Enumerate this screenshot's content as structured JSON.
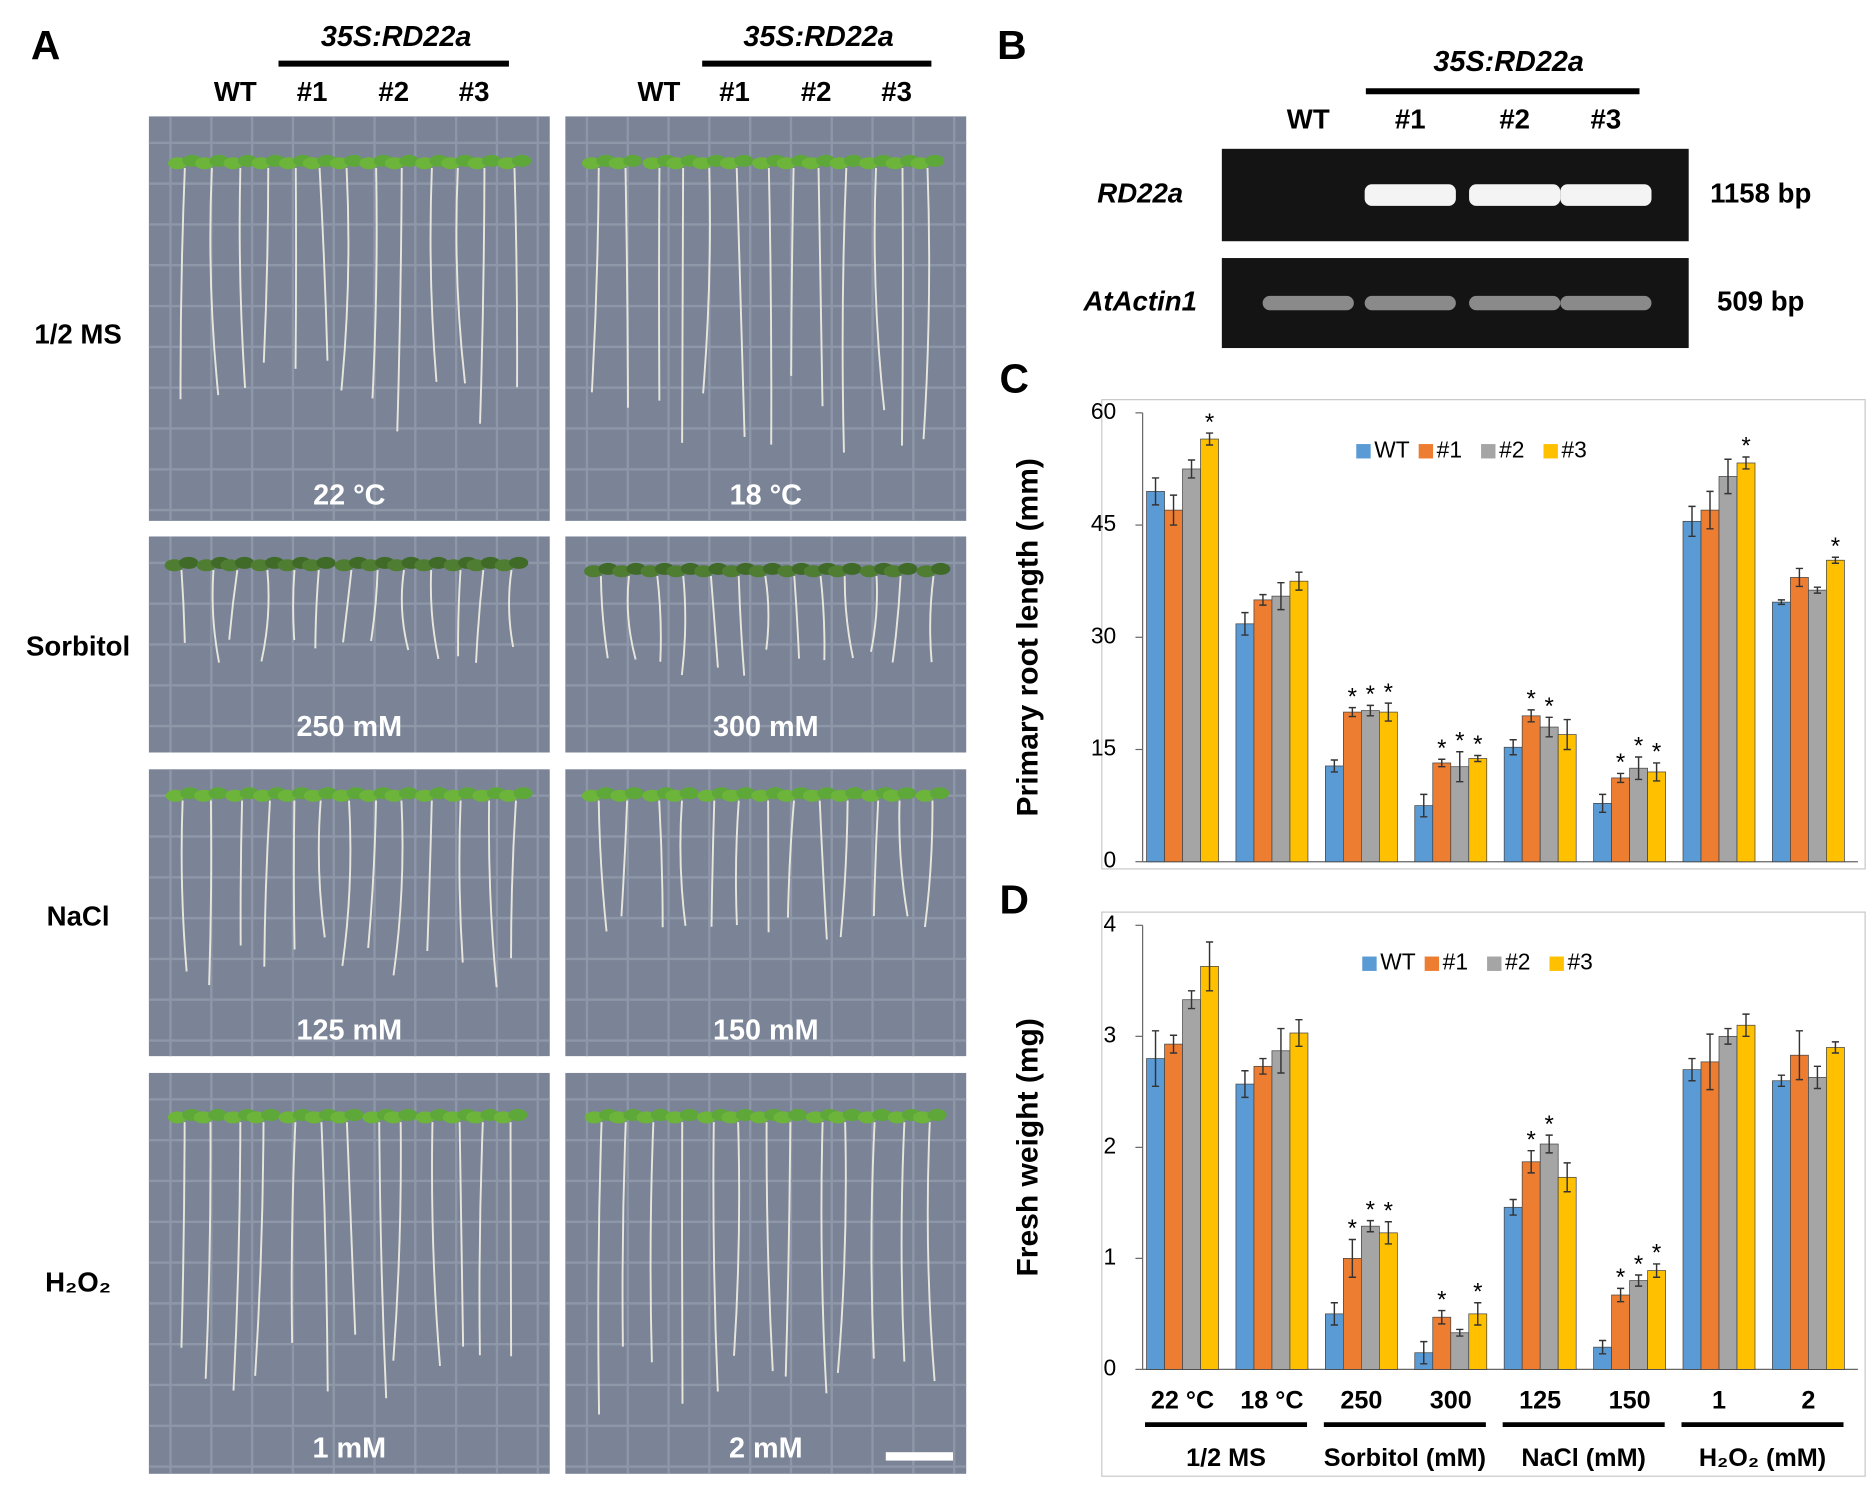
{
  "panel_a": {
    "label": "A",
    "construct": [
      "35S:RD22a",
      "35S:RD22a"
    ],
    "lines": [
      [
        "WT",
        "#1",
        "#2",
        "#3"
      ],
      [
        "WT",
        "#1",
        "#2",
        "#3"
      ]
    ],
    "rows": [
      {
        "label": "1/2 MS",
        "conditions": [
          "22 °C",
          "18 °C"
        ]
      },
      {
        "label": "Sorbitol",
        "conditions": [
          "250 mM",
          "300 mM"
        ]
      },
      {
        "label": "NaCl",
        "conditions": [
          "125 mM",
          "150 mM"
        ]
      },
      {
        "label": "H₂O₂",
        "conditions": [
          "1 mM",
          "2 mM"
        ]
      }
    ]
  },
  "panel_b": {
    "label": "B",
    "construct": "35S:RD22a",
    "lines": [
      "WT",
      "#1",
      "#2",
      "#3"
    ],
    "genes": [
      {
        "name": "RD22a",
        "size": "1158 bp"
      },
      {
        "name": "AtActin1",
        "size": "509 bp"
      }
    ]
  },
  "chart_data": [
    {
      "type": "bar",
      "panel_label": "C",
      "y_label": "Primary root length (mm)",
      "ylim": [
        0,
        60
      ],
      "yticks": [
        0,
        15,
        30,
        45,
        60
      ],
      "legend": "top",
      "series": [
        {
          "name": "WT",
          "color": "#5b9bd5",
          "values": [
            49.5,
            31.8,
            12.8,
            7.5,
            15.3,
            7.8,
            45.5,
            34.7
          ],
          "errors": [
            1.8,
            1.5,
            0.8,
            1.5,
            1.0,
            1.2,
            2.0,
            0.3
          ],
          "labels": [
            null,
            null,
            null,
            null,
            null,
            null,
            null,
            null
          ]
        },
        {
          "name": "#1",
          "color": "#ed7d31",
          "values": [
            47,
            35,
            20,
            13.2,
            19.5,
            11.2,
            47,
            38
          ],
          "errors": [
            2.0,
            0.7,
            0.6,
            0.5,
            0.8,
            0.6,
            2.5,
            1.2
          ],
          "labels": [
            null,
            null,
            "*",
            "*",
            "*",
            "*",
            null,
            null
          ]
        },
        {
          "name": "#2",
          "color": "#a5a5a5",
          "values": [
            52.5,
            35.5,
            20.2,
            12.7,
            18,
            12.5,
            51.5,
            36.3
          ],
          "errors": [
            1.2,
            1.8,
            0.7,
            2.0,
            1.3,
            1.5,
            2.3,
            0.4
          ],
          "labels": [
            null,
            null,
            "*",
            "*",
            "*",
            "*",
            null,
            null
          ]
        },
        {
          "name": "#3",
          "color": "#ffc000",
          "values": [
            56.5,
            37.5,
            20,
            13.8,
            17,
            12,
            53.3,
            40.3
          ],
          "errors": [
            0.8,
            1.2,
            1.2,
            0.4,
            2.0,
            1.2,
            0.8,
            0.4
          ],
          "labels": [
            "*",
            null,
            "*",
            "*",
            null,
            "*",
            "*",
            "*"
          ]
        }
      ]
    },
    {
      "type": "bar",
      "panel_label": "D",
      "y_label": "Fresh weight (mg)",
      "ylim": [
        0,
        4
      ],
      "yticks": [
        0,
        1,
        2,
        3,
        4
      ],
      "legend": "top",
      "category_groups": [
        {
          "name": "1/2 MS",
          "categories": [
            "22 °C",
            "18 °C"
          ]
        },
        {
          "name": "Sorbitol (mM)",
          "categories": [
            "250",
            "300"
          ]
        },
        {
          "name": "NaCl (mM)",
          "categories": [
            "125",
            "150"
          ]
        },
        {
          "name": "H₂O₂ (mM)",
          "categories": [
            "1",
            "2"
          ]
        }
      ],
      "series": [
        {
          "name": "WT",
          "color": "#5b9bd5",
          "values": [
            2.8,
            2.57,
            0.5,
            0.15,
            1.46,
            0.2,
            2.7,
            2.6
          ],
          "errors": [
            0.25,
            0.12,
            0.1,
            0.1,
            0.07,
            0.06,
            0.1,
            0.05
          ],
          "labels": [
            null,
            null,
            null,
            null,
            null,
            null,
            null,
            null
          ]
        },
        {
          "name": "#1",
          "color": "#ed7d31",
          "values": [
            2.93,
            2.73,
            1.0,
            0.47,
            1.87,
            0.67,
            2.77,
            2.83
          ],
          "errors": [
            0.08,
            0.07,
            0.17,
            0.06,
            0.1,
            0.06,
            0.25,
            0.22
          ],
          "labels": [
            null,
            null,
            "*",
            "*",
            "*",
            "*",
            null,
            null
          ]
        },
        {
          "name": "#2",
          "color": "#a5a5a5",
          "values": [
            3.33,
            2.87,
            1.29,
            0.33,
            2.03,
            0.8,
            3.0,
            2.63
          ],
          "errors": [
            0.08,
            0.2,
            0.05,
            0.03,
            0.08,
            0.05,
            0.07,
            0.1
          ],
          "labels": [
            null,
            null,
            "*",
            null,
            "*",
            "*",
            null,
            null
          ]
        },
        {
          "name": "#3",
          "color": "#ffc000",
          "values": [
            3.63,
            3.03,
            1.23,
            0.5,
            1.73,
            0.89,
            3.1,
            2.9
          ],
          "errors": [
            0.22,
            0.12,
            0.1,
            0.1,
            0.13,
            0.06,
            0.1,
            0.05
          ],
          "labels": [
            null,
            null,
            "*",
            "*",
            null,
            "*",
            null,
            null
          ]
        }
      ]
    }
  ]
}
